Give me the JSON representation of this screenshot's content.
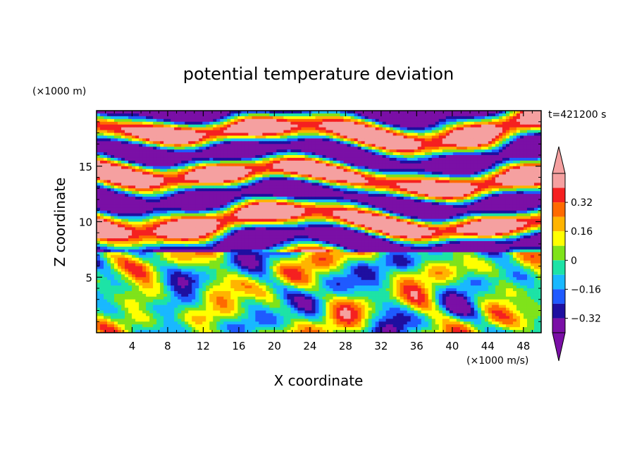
{
  "chart_data": {
    "type": "heatmap",
    "title": "potential temperature deviation",
    "xlabel": "X coordinate",
    "ylabel": "Z coordinate",
    "x_unit": "(×1000 m/s)",
    "y_unit": "(×1000 m)",
    "time_label": "t=421200 s",
    "xlim": [
      0,
      50
    ],
    "ylim": [
      0,
      20
    ],
    "x_ticks": [
      4,
      8,
      12,
      16,
      20,
      24,
      28,
      32,
      36,
      40,
      44,
      48
    ],
    "x_tick_labels": [
      "4",
      "8",
      "12",
      "16",
      "20",
      "24",
      "28",
      "32",
      "36",
      "40",
      "44",
      "48"
    ],
    "y_ticks": [
      5,
      10,
      15
    ],
    "y_tick_labels": [
      "5",
      "10",
      "15"
    ],
    "colorbar": {
      "levels": [
        -0.4,
        -0.32,
        -0.24,
        -0.16,
        -0.08,
        0,
        0.08,
        0.16,
        0.24,
        0.32,
        0.4
      ],
      "tick_values": [
        0.32,
        0.16,
        0,
        -0.16,
        -0.32
      ],
      "tick_labels": [
        "0.32",
        "0.16",
        "0",
        "−0.16",
        "−0.32"
      ],
      "colors": [
        "#7a0fa6",
        "#1e0fa0",
        "#1f5aff",
        "#19b8ff",
        "#1de3a6",
        "#7fe31a",
        "#ffff00",
        "#ffb400",
        "#ff6a00",
        "#f52020",
        "#f5a0a0"
      ],
      "under_color": "#7a0fa6",
      "over_color": "#f5a0a0"
    },
    "field_description": "alternating bands of positive (pink) and negative (purple) deviation above z≈7, turbulent eddies with mixed values below"
  }
}
